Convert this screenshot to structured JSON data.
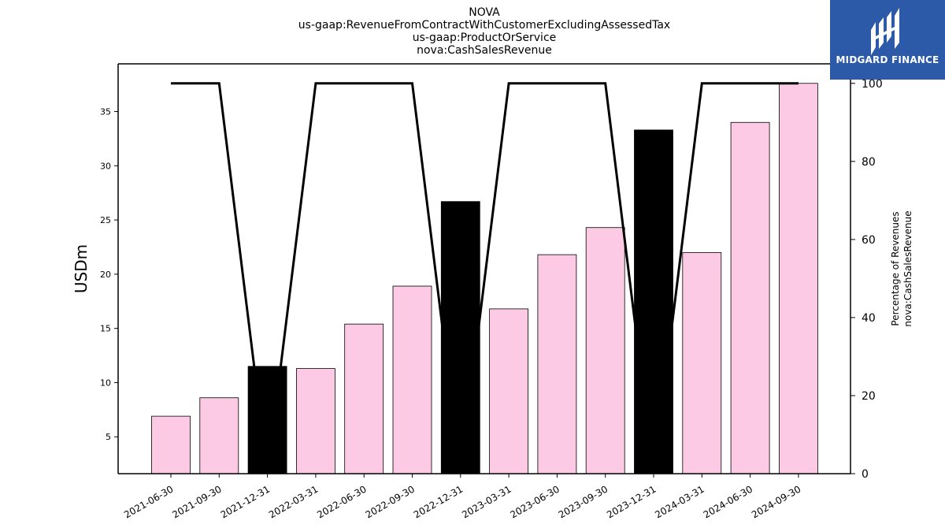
{
  "titles": [
    "NOVA",
    "us-gaap:RevenueFromContractWithCustomerExcludingAssessedTax",
    "us-gaap:ProductOrService",
    "nova:CashSalesRevenue"
  ],
  "logo": {
    "text": "MIDGARD FINANCE",
    "background": "#2c5aa8"
  },
  "chart_data": {
    "type": "bar",
    "categories": [
      "2021-06-30",
      "2021-09-30",
      "2021-12-31",
      "2022-03-31",
      "2022-06-30",
      "2022-09-30",
      "2022-12-31",
      "2023-03-31",
      "2023-06-30",
      "2023-09-30",
      "2023-12-31",
      "2024-03-31",
      "2024-06-30",
      "2024-09-30"
    ],
    "values": [
      6.9,
      8.6,
      11.5,
      11.3,
      15.4,
      18.9,
      26.7,
      16.8,
      21.8,
      24.3,
      33.3,
      22.0,
      34.0,
      37.6
    ],
    "bar_colors": [
      "#fccae4",
      "#fccae4",
      "#000000",
      "#fccae4",
      "#fccae4",
      "#fccae4",
      "#000000",
      "#fccae4",
      "#fccae4",
      "#fccae4",
      "#000000",
      "#fccae4",
      "#fccae4",
      "#fccae4"
    ],
    "ylabel": "USDm",
    "ylim": [
      1.6,
      39.4
    ],
    "yticks": [
      5,
      10,
      15,
      20,
      25,
      30,
      35
    ],
    "secondary": {
      "type": "line",
      "values": [
        100,
        100,
        0,
        100,
        100,
        100,
        0,
        100,
        100,
        100,
        0,
        100,
        100,
        100
      ],
      "ylabel_lines": [
        "Percentage of Revenues",
        "nova:CashSalesRevenue"
      ],
      "ylim": [
        0,
        105
      ],
      "yticks": [
        0,
        20,
        40,
        60,
        80,
        100
      ],
      "color": "#000000"
    },
    "grid": false,
    "legend": "none"
  }
}
